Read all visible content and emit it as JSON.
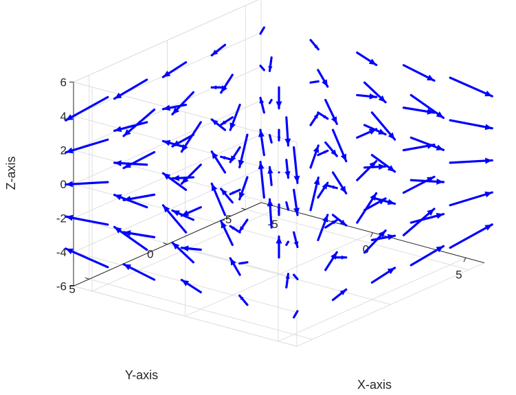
{
  "chart_data": {
    "type": "quiver3",
    "title": "",
    "xlabel": "X-axis",
    "ylabel": "Y-axis",
    "zlabel": "Z-axis",
    "xlim": [
      -6,
      6
    ],
    "ylim": [
      -6,
      6
    ],
    "zlim": [
      -6,
      6
    ],
    "xticks": [
      -5,
      0,
      5
    ],
    "yticks": [
      -5,
      0,
      5
    ],
    "zticks": [
      -6,
      -4,
      -2,
      0,
      2,
      4,
      6
    ],
    "grid": true,
    "arrow_color": "#0000ff",
    "grid_points": [
      -5,
      -2.5,
      0,
      2.5,
      5
    ],
    "vector_field": "(u, v, w) = (x, y, -z)",
    "view": {
      "azimuth_deg": -37.5,
      "elevation_deg": 30
    }
  }
}
